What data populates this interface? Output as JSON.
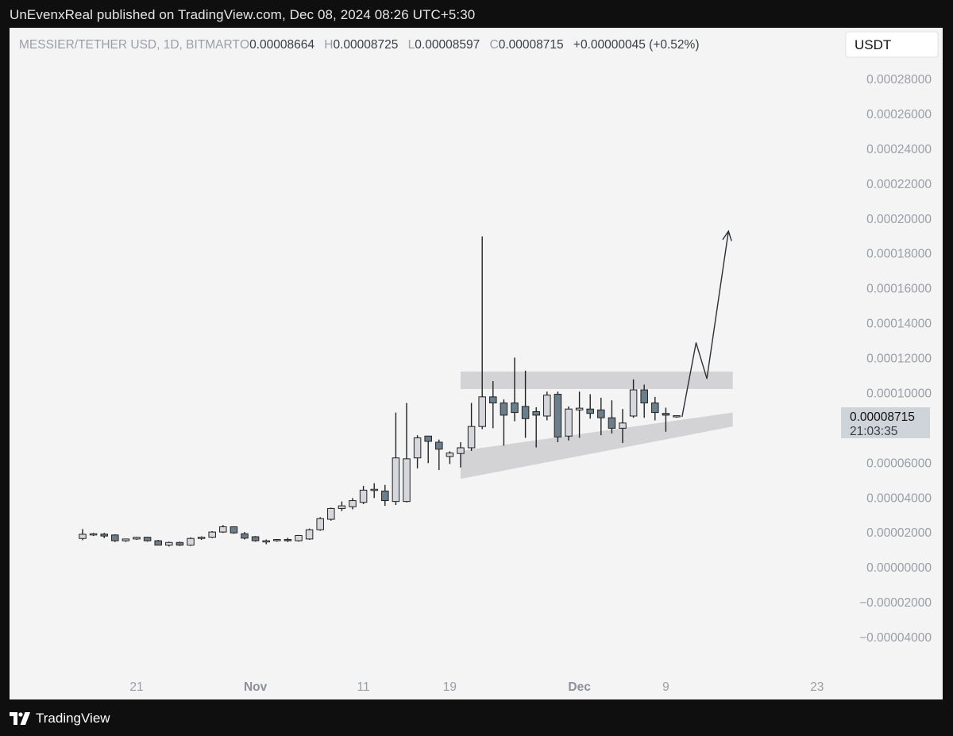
{
  "header": {
    "published_line": "UnEvenxReal published on TradingView.com, Dec 08, 2024 08:26 UTC+5:30"
  },
  "footer": {
    "brand": "TradingView"
  },
  "chart_data": {
    "type": "candlestick",
    "legend": {
      "symbol": "MESSIER/TETHER USD, 1D, BITMART",
      "o_label": "O",
      "o_value": "0.00008664",
      "h_label": "H",
      "h_value": "0.00008725",
      "l_label": "L",
      "l_value": "0.00008597",
      "c_label": "C",
      "c_value": "0.00008715",
      "change": "+0.00000045 (+0.52%)"
    },
    "currency": "USDT",
    "last_price": "0.00008715",
    "countdown": "21:03:35",
    "ylim": [
      -4e-05,
      0.00028
    ],
    "y_ticks": [
      "0.00028000",
      "0.00026000",
      "0.00024000",
      "0.00022000",
      "0.00020000",
      "0.00018000",
      "0.00016000",
      "0.00014000",
      "0.00012000",
      "0.00010000",
      "0.00006000",
      "0.00004000",
      "0.00002000",
      "0.00000000",
      "−0.00002000",
      "−0.00004000"
    ],
    "y_tick_values": [
      0.00028,
      0.00026,
      0.00024,
      0.00022,
      0.0002,
      0.00018,
      0.00016,
      0.00014,
      0.00012,
      0.0001,
      6e-05,
      4e-05,
      2e-05,
      0,
      -2e-05,
      -4e-05
    ],
    "x_ticks": [
      {
        "label": "21",
        "idx": 5,
        "bold": false
      },
      {
        "label": "Nov",
        "idx": 16,
        "bold": true
      },
      {
        "label": "11",
        "idx": 26,
        "bold": false
      },
      {
        "label": "19",
        "idx": 34,
        "bold": false
      },
      {
        "label": "Dec",
        "idx": 46,
        "bold": true
      },
      {
        "label": "9",
        "idx": 54,
        "bold": false
      },
      {
        "label": "23",
        "idx": 68,
        "bold": false
      }
    ],
    "candles": [
      {
        "o": 1.68e-05,
        "h": 2.22e-05,
        "l": 1.58e-05,
        "c": 1.92e-05
      },
      {
        "o": 1.88e-05,
        "h": 2e-05,
        "l": 1.82e-05,
        "c": 1.95e-05
      },
      {
        "o": 1.93e-05,
        "h": 2e-05,
        "l": 1.7e-05,
        "c": 1.82e-05
      },
      {
        "o": 1.88e-05,
        "h": 1.92e-05,
        "l": 1.48e-05,
        "c": 1.55e-05
      },
      {
        "o": 1.55e-05,
        "h": 1.65e-05,
        "l": 1.48e-05,
        "c": 1.65e-05
      },
      {
        "o": 1.65e-05,
        "h": 1.78e-05,
        "l": 1.6e-05,
        "c": 1.75e-05
      },
      {
        "o": 1.75e-05,
        "h": 1.78e-05,
        "l": 1.5e-05,
        "c": 1.55e-05
      },
      {
        "o": 1.55e-05,
        "h": 1.6e-05,
        "l": 1.28e-05,
        "c": 1.3e-05
      },
      {
        "o": 1.3e-05,
        "h": 1.5e-05,
        "l": 1.22e-05,
        "c": 1.45e-05
      },
      {
        "o": 1.45e-05,
        "h": 1.5e-05,
        "l": 1.25e-05,
        "c": 1.3e-05
      },
      {
        "o": 1.3e-05,
        "h": 1.75e-05,
        "l": 1.25e-05,
        "c": 1.68e-05
      },
      {
        "o": 1.68e-05,
        "h": 1.8e-05,
        "l": 1.6e-05,
        "c": 1.75e-05
      },
      {
        "o": 1.75e-05,
        "h": 2.1e-05,
        "l": 1.7e-05,
        "c": 2.05e-05
      },
      {
        "o": 2.05e-05,
        "h": 2.45e-05,
        "l": 2e-05,
        "c": 2.35e-05
      },
      {
        "o": 2.35e-05,
        "h": 2.38e-05,
        "l": 1.95e-05,
        "c": 2e-05
      },
      {
        "o": 1.95e-05,
        "h": 2.05e-05,
        "l": 1.62e-05,
        "c": 1.7e-05
      },
      {
        "o": 1.78e-05,
        "h": 1.82e-05,
        "l": 1.5e-05,
        "c": 1.55e-05
      },
      {
        "o": 1.48e-05,
        "h": 1.62e-05,
        "l": 1.35e-05,
        "c": 1.55e-05
      },
      {
        "o": 1.58e-05,
        "h": 1.65e-05,
        "l": 1.5e-05,
        "c": 1.62e-05
      },
      {
        "o": 1.62e-05,
        "h": 1.72e-05,
        "l": 1.48e-05,
        "c": 1.6e-05
      },
      {
        "o": 1.55e-05,
        "h": 1.88e-05,
        "l": 1.5e-05,
        "c": 1.85e-05
      },
      {
        "o": 1.65e-05,
        "h": 2.25e-05,
        "l": 1.6e-05,
        "c": 2.18e-05
      },
      {
        "o": 2.18e-05,
        "h": 2.9e-05,
        "l": 2.12e-05,
        "c": 2.82e-05
      },
      {
        "o": 2.78e-05,
        "h": 3.45e-05,
        "l": 2.7e-05,
        "c": 3.4e-05
      },
      {
        "o": 3.4e-05,
        "h": 3.8e-05,
        "l": 3.25e-05,
        "c": 3.55e-05
      },
      {
        "o": 3.5e-05,
        "h": 4e-05,
        "l": 3.35e-05,
        "c": 3.85e-05
      },
      {
        "o": 3.75e-05,
        "h": 4.7e-05,
        "l": 3.65e-05,
        "c": 4.45e-05
      },
      {
        "o": 4.45e-05,
        "h": 4.85e-05,
        "l": 4e-05,
        "c": 4.5e-05
      },
      {
        "o": 4.4e-05,
        "h": 4.75e-05,
        "l": 3.55e-05,
        "c": 3.85e-05
      },
      {
        "o": 3.8e-05,
        "h": 8.9e-05,
        "l": 3.6e-05,
        "c": 6.3e-05
      },
      {
        "o": 3.8e-05,
        "h": 9.45e-05,
        "l": 3.75e-05,
        "c": 6.25e-05
      },
      {
        "o": 6.3e-05,
        "h": 7.6e-05,
        "l": 5.7e-05,
        "c": 7.45e-05
      },
      {
        "o": 7.55e-05,
        "h": 7.55e-05,
        "l": 6e-05,
        "c": 7.25e-05
      },
      {
        "o": 7.2e-05,
        "h": 7.35e-05,
        "l": 5.6e-05,
        "c": 6.8e-05
      },
      {
        "o": 6.38e-05,
        "h": 6.68e-05,
        "l": 5.95e-05,
        "c": 6.58e-05
      },
      {
        "o": 6.55e-05,
        "h": 7.2e-05,
        "l": 5.75e-05,
        "c": 6.88e-05
      },
      {
        "o": 6.88e-05,
        "h": 9.45e-05,
        "l": 6.7e-05,
        "c": 8.1e-05
      },
      {
        "o": 8.1e-05,
        "h": 0.00019,
        "l": 7.95e-05,
        "c": 9.8e-05
      },
      {
        "o": 9.8e-05,
        "h": 0.000107,
        "l": 8e-05,
        "c": 9.45e-05
      },
      {
        "o": 9.45e-05,
        "h": 9.65e-05,
        "l": 7e-05,
        "c": 8.75e-05
      },
      {
        "o": 9.45e-05,
        "h": 0.0001205,
        "l": 8.4e-05,
        "c": 8.9e-05
      },
      {
        "o": 9.25e-05,
        "h": 0.000113,
        "l": 7.45e-05,
        "c": 8.55e-05
      },
      {
        "o": 8.95e-05,
        "h": 9.2e-05,
        "l": 6.9e-05,
        "c": 8.75e-05
      },
      {
        "o": 8.7e-05,
        "h": 0.000101,
        "l": 8.45e-05,
        "c": 9.9e-05
      },
      {
        "o": 9.95e-05,
        "h": 0.000101,
        "l": 7.2e-05,
        "c": 7.5e-05
      },
      {
        "o": 7.55e-05,
        "h": 9.25e-05,
        "l": 7.3e-05,
        "c": 9.1e-05
      },
      {
        "o": 9.05e-05,
        "h": 0.000101,
        "l": 7.45e-05,
        "c": 9.15e-05
      },
      {
        "o": 9.1e-05,
        "h": 9.95e-05,
        "l": 8.55e-05,
        "c": 8.85e-05
      },
      {
        "o": 9.05e-05,
        "h": 9.75e-05,
        "l": 7.6e-05,
        "c": 8.6e-05
      },
      {
        "o": 8.6e-05,
        "h": 9.6e-05,
        "l": 7.7e-05,
        "c": 8e-05
      },
      {
        "o": 8e-05,
        "h": 9.1e-05,
        "l": 7.15e-05,
        "c": 8.3e-05
      },
      {
        "o": 8.7e-05,
        "h": 0.000108,
        "l": 8.6e-05,
        "c": 0.000102
      },
      {
        "o": 0.000102,
        "h": 0.000105,
        "l": 8.6e-05,
        "c": 9.45e-05
      },
      {
        "o": 9.45e-05,
        "h": 9.8e-05,
        "l": 8.45e-05,
        "c": 8.9e-05
      },
      {
        "o": 8.85e-05,
        "h": 9.18e-05,
        "l": 7.8e-05,
        "c": 8.75e-05
      },
      {
        "o": 8.66e-05,
        "h": 8.73e-05,
        "l": 8.6e-05,
        "c": 8.72e-05
      }
    ],
    "annotations": {
      "resistance_zone": {
        "i0": 35,
        "i1": 60.2,
        "top": 0.0001125,
        "bottom": 0.0001025
      },
      "support_channel": {
        "i0": 35,
        "i1": 60.2,
        "top_start": 6.7e-05,
        "top_end": 8.9e-05,
        "bottom_start": 5.1e-05,
        "bottom_end": 8.1e-05
      },
      "projection_path": [
        [
          55.5,
          8.65e-05
        ],
        [
          56.8,
          0.000129
        ],
        [
          57.8,
          0.0001085
        ],
        [
          59.8,
          0.000193
        ]
      ]
    },
    "colors": {
      "background": "#f4f4f4",
      "up_fill": "#d5d7dc",
      "down_fill": "#6a7f8b",
      "candle_border": "#222222",
      "axis_text": "#9a9ea6",
      "legend_text": "#3a3e45",
      "zone_fill": "#d3d3d6",
      "price_label_bg": "#cfd3da"
    }
  }
}
